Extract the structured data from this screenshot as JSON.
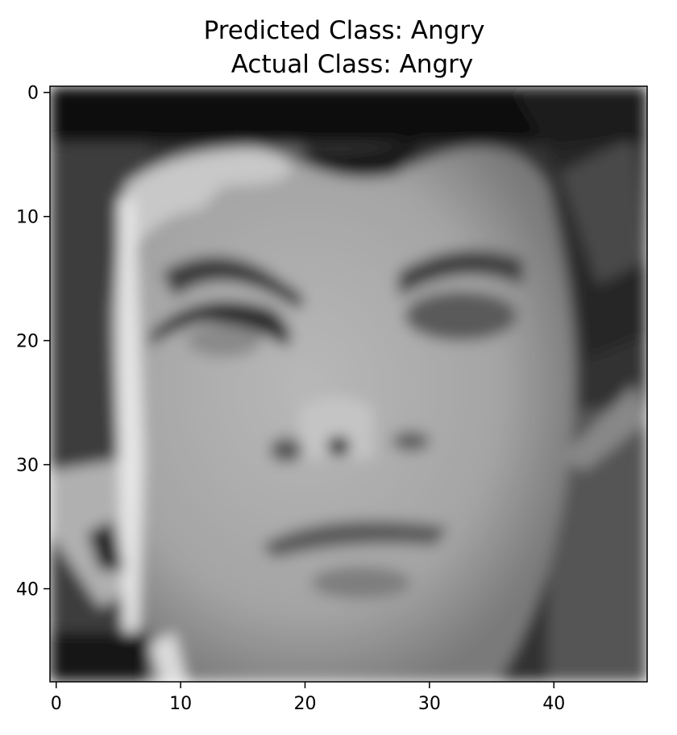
{
  "chart_data": {
    "type": "image",
    "title": [
      "Predicted Class: Angry",
      "Actual Class: Angry"
    ],
    "xlim": [
      -0.5,
      47.5
    ],
    "ylim": [
      47.5,
      -0.5
    ],
    "xticks": [
      0,
      10,
      20,
      30,
      40
    ],
    "yticks": [
      0,
      10,
      20,
      30,
      40
    ],
    "colormap": "gray"
  }
}
